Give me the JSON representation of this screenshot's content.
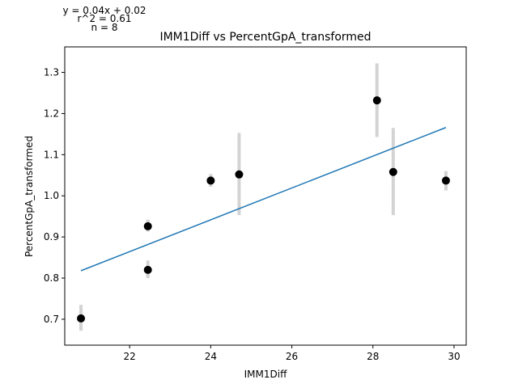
{
  "chart_data": {
    "type": "scatter",
    "title": "IMM1Diff vs PercentGpA_transformed",
    "xlabel": "IMM1Diff",
    "ylabel": "PercentGpA_transformed",
    "annotations": [
      "y = 0.04x + 0.02",
      "r^2 = 0.61",
      "n = 8"
    ],
    "xlim": [
      20.4,
      30.3
    ],
    "ylim": [
      0.637,
      1.362
    ],
    "xticks": [
      22,
      24,
      26,
      28,
      30
    ],
    "yticks": [
      0.7,
      0.8,
      0.9,
      1.0,
      1.1,
      1.2,
      1.3
    ],
    "ytick_labels": [
      "0.7",
      "0.8",
      "0.9",
      "1.0",
      "1.1",
      "1.2",
      "1.3"
    ],
    "grid": false,
    "points": [
      {
        "x": 20.8,
        "y": 0.702,
        "err_low": 0.672,
        "err_high": 0.735
      },
      {
        "x": 22.45,
        "y": 0.926,
        "err_low": 0.913,
        "err_high": 0.942
      },
      {
        "x": 22.45,
        "y": 0.82,
        "err_low": 0.8,
        "err_high": 0.843
      },
      {
        "x": 24.0,
        "y": 1.037,
        "err_low": 1.022,
        "err_high": 1.053
      },
      {
        "x": 24.7,
        "y": 1.052,
        "err_low": 0.953,
        "err_high": 1.153
      },
      {
        "x": 28.1,
        "y": 1.232,
        "err_low": 1.143,
        "err_high": 1.322
      },
      {
        "x": 28.5,
        "y": 1.058,
        "err_low": 0.953,
        "err_high": 1.165
      },
      {
        "x": 29.8,
        "y": 1.037,
        "err_low": 1.013,
        "err_high": 1.06
      }
    ],
    "fit_line": {
      "x": [
        20.8,
        29.8
      ],
      "y": [
        0.818,
        1.166
      ]
    },
    "colors": {
      "points": "#000000",
      "error_bars": "#d3d3d3",
      "fit_line": "#1f77b4"
    }
  }
}
